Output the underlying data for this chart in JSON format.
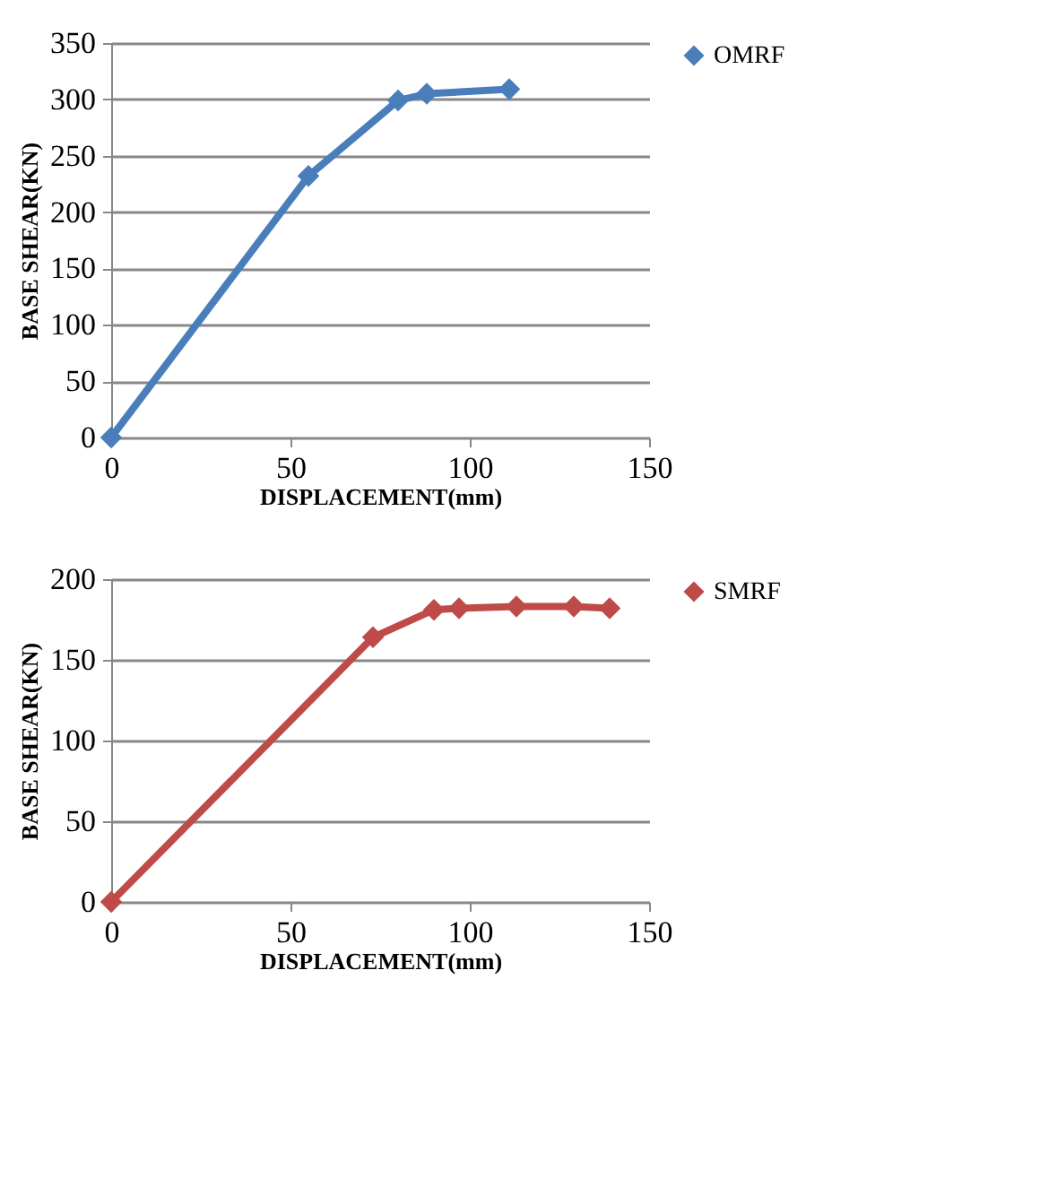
{
  "chart_data": [
    {
      "type": "line",
      "xlabel": "DISPLACEMENT(mm)",
      "ylabel": "BASE SHEAR(KN)",
      "xlim": [
        0,
        150
      ],
      "xticks": [
        0,
        50,
        100,
        150
      ],
      "ylim": [
        0,
        350
      ],
      "yticks": [
        0,
        50,
        100,
        150,
        200,
        250,
        300,
        350
      ],
      "grid": "y",
      "legend": "right",
      "marker": "diamond",
      "line_style": "solid",
      "series": [
        {
          "name": "OMRF",
          "color": "#4a7ebb",
          "x": [
            0,
            55,
            80,
            88,
            111
          ],
          "values": [
            0,
            232,
            299,
            305,
            309
          ]
        }
      ]
    },
    {
      "type": "line",
      "xlabel": "DISPLACEMENT(mm)",
      "ylabel": "BASE SHEAR(KN)",
      "xlim": [
        0,
        150
      ],
      "xticks": [
        0,
        50,
        100,
        150
      ],
      "ylim": [
        0,
        200
      ],
      "yticks": [
        0,
        50,
        100,
        150,
        200
      ],
      "grid": "y",
      "legend": "right",
      "marker": "diamond",
      "line_style": "solid",
      "series": [
        {
          "name": "SMRF",
          "color": "#be4b48",
          "x": [
            0,
            73,
            90,
            97,
            113,
            129,
            139
          ],
          "values": [
            0,
            164,
            181,
            182,
            183,
            183,
            182
          ]
        }
      ]
    }
  ]
}
